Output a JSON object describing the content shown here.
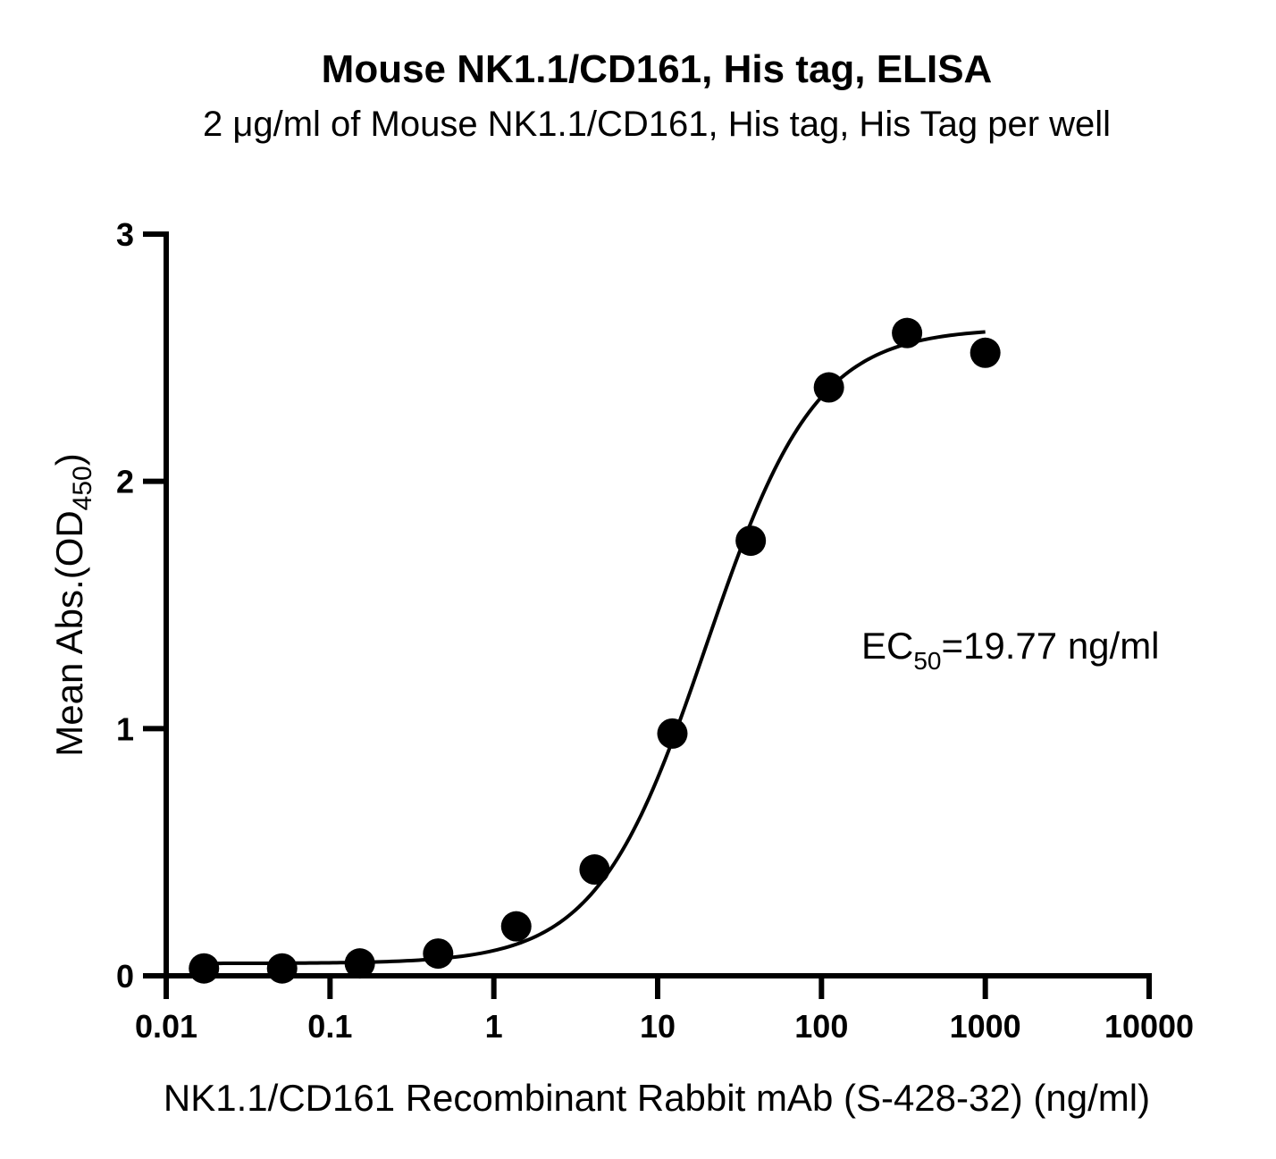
{
  "chart_data": {
    "type": "scatter",
    "title": "Mouse NK1.1/CD161, His tag, ELISA",
    "subtitle": "2 μg/ml of Mouse NK1.1/CD161, His tag, His Tag per well",
    "xlabel": "NK1.1/CD161 Recombinant Rabbit mAb (S-428-32) (ng/ml)",
    "ylabel": {
      "prefix": "Mean Abs.(OD",
      "subscript": "450",
      "suffix": ")"
    },
    "x_scale": "log",
    "xlim": [
      0.01,
      10000
    ],
    "ylim": [
      0,
      3
    ],
    "x_ticks": [
      0.01,
      0.1,
      1,
      10,
      100,
      1000,
      10000
    ],
    "x_tick_labels": [
      "0.01",
      "0.1",
      "1",
      "10",
      "100",
      "1000",
      "10000"
    ],
    "y_ticks": [
      0,
      1,
      2,
      3
    ],
    "y_tick_labels": [
      "0",
      "1",
      "2",
      "3"
    ],
    "grid": false,
    "series": [
      {
        "x": [
          0.017,
          0.051,
          0.152,
          0.457,
          1.37,
          4.12,
          12.3,
          37.0,
          111,
          333,
          1000
        ],
        "y": [
          0.03,
          0.03,
          0.05,
          0.09,
          0.2,
          0.43,
          0.98,
          1.76,
          2.38,
          2.6,
          2.52
        ],
        "color": "#000000"
      }
    ],
    "fit_curve": {
      "model": "4PL",
      "bottom": 0.05,
      "top": 2.62,
      "ec50": 19.77,
      "hill": 1.3,
      "x_range": [
        0.017,
        1000
      ]
    },
    "annotation": {
      "prefix": "EC",
      "subscript": "50",
      "suffix": "=19.77 ng/ml"
    }
  }
}
